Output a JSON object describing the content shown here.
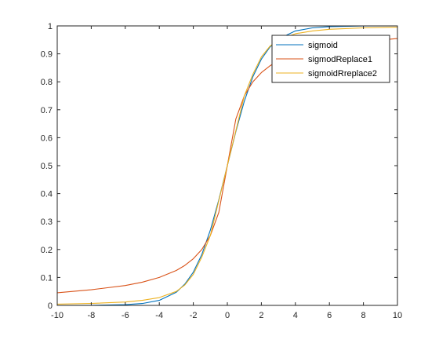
{
  "chart_data": {
    "type": "line",
    "title": "",
    "xlabel": "",
    "ylabel": "",
    "xlim": [
      -10,
      10
    ],
    "ylim": [
      0,
      1
    ],
    "xticks": [
      -10,
      -8,
      -6,
      -4,
      -2,
      0,
      2,
      4,
      6,
      8,
      10
    ],
    "yticks": [
      0,
      0.1,
      0.2,
      0.3,
      0.4,
      0.5,
      0.6,
      0.7,
      0.8,
      0.9,
      1
    ],
    "xtick_labels": [
      "-10",
      "-8",
      "-6",
      "-4",
      "-2",
      "0",
      "2",
      "4",
      "6",
      "8",
      "10"
    ],
    "ytick_labels": [
      "0",
      "0.1",
      "0.2",
      "0.3",
      "0.4",
      "0.5",
      "0.6",
      "0.7",
      "0.8",
      "0.9",
      "1"
    ],
    "grid": false,
    "legend_position": "top-right",
    "series": [
      {
        "name": "sigmoid",
        "color": "#0072BD",
        "x": [
          -10,
          -8,
          -6,
          -5,
          -4,
          -3,
          -2.5,
          -2,
          -1.5,
          -1,
          -0.5,
          0,
          0.5,
          1,
          1.5,
          2,
          2.5,
          3,
          4,
          5,
          6,
          8,
          10
        ],
        "y": [
          0.0,
          0.0003,
          0.0025,
          0.0067,
          0.018,
          0.047,
          0.076,
          0.119,
          0.182,
          0.269,
          0.378,
          0.5,
          0.622,
          0.731,
          0.818,
          0.881,
          0.924,
          0.953,
          0.982,
          0.993,
          0.9975,
          0.9997,
          1.0
        ]
      },
      {
        "name": "sigmodReplace1",
        "color": "#D95319",
        "x": [
          -10,
          -8,
          -6,
          -5,
          -4,
          -3,
          -2.5,
          -2,
          -1.5,
          -1,
          -0.5,
          0,
          0.5,
          1,
          1.5,
          2,
          2.5,
          3,
          4,
          5,
          6,
          8,
          10
        ],
        "y": [
          0.045,
          0.056,
          0.071,
          0.083,
          0.1,
          0.125,
          0.143,
          0.167,
          0.2,
          0.25,
          0.333,
          0.5,
          0.667,
          0.75,
          0.8,
          0.833,
          0.857,
          0.875,
          0.9,
          0.917,
          0.929,
          0.944,
          0.955
        ]
      },
      {
        "name": "sigmoidRreplace2",
        "color": "#EDB120",
        "x": [
          -10,
          -8,
          -6,
          -5,
          -4,
          -3,
          -2.5,
          -2,
          -1.5,
          -1,
          -0.5,
          0,
          0.5,
          1,
          1.5,
          2,
          2.5,
          3,
          4,
          5,
          6,
          8,
          10
        ],
        "y": [
          0.0045,
          0.007,
          0.012,
          0.018,
          0.028,
          0.05,
          0.073,
          0.111,
          0.173,
          0.25,
          0.375,
          0.5,
          0.625,
          0.75,
          0.827,
          0.889,
          0.927,
          0.95,
          0.972,
          0.982,
          0.988,
          0.993,
          0.9955
        ]
      }
    ]
  }
}
